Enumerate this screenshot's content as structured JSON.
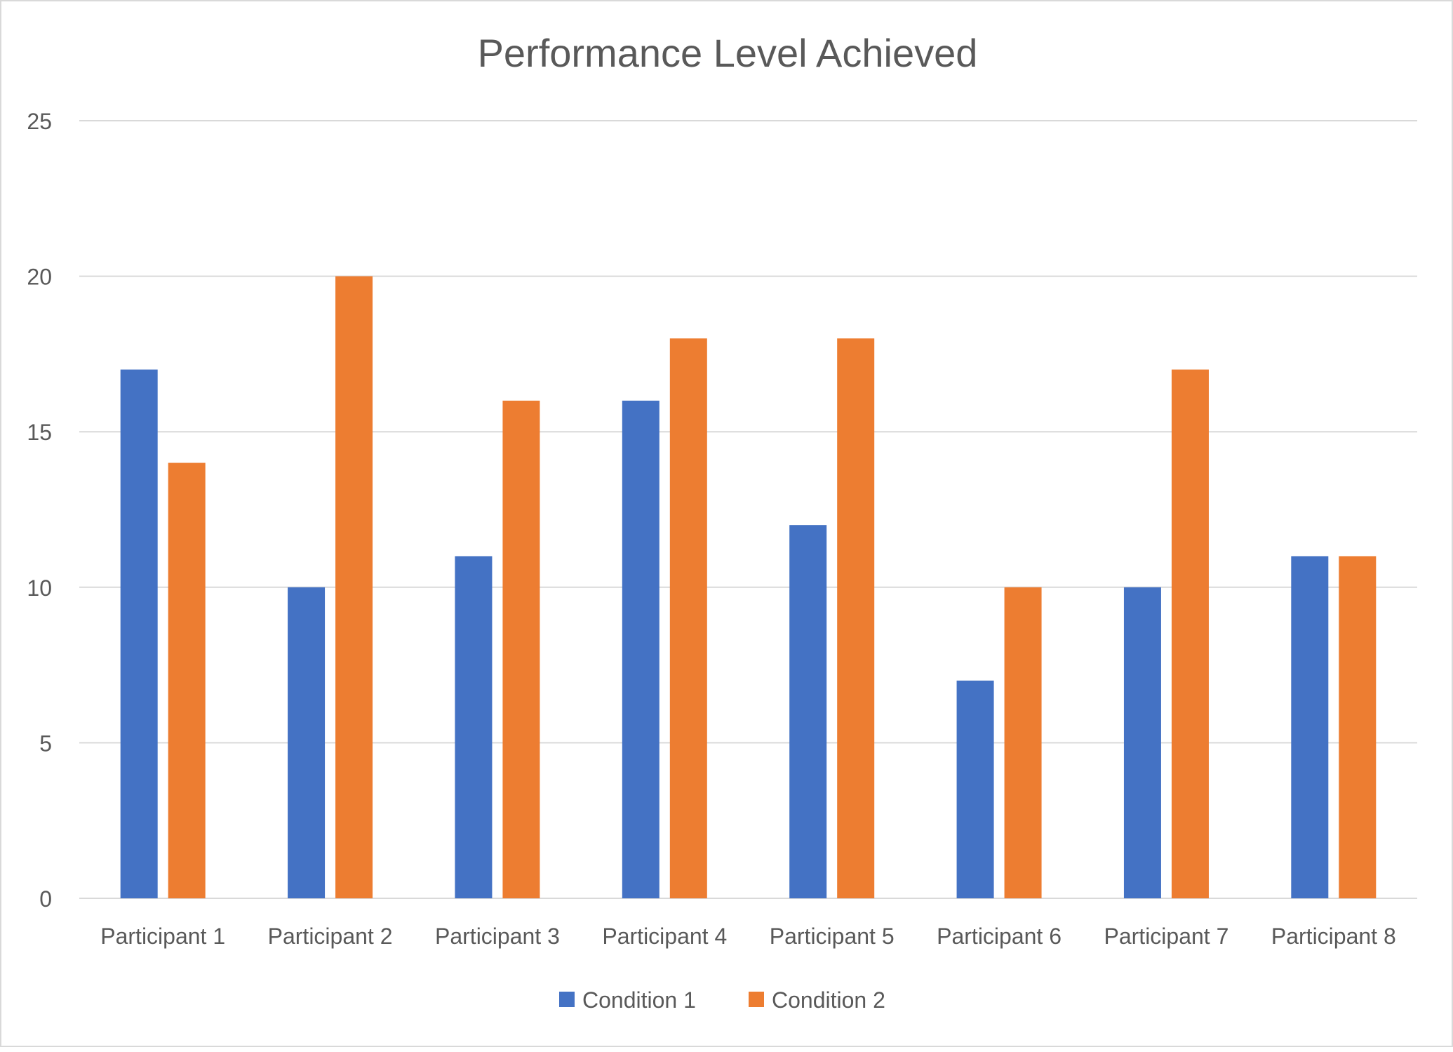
{
  "chart_data": {
    "type": "bar",
    "title": "Performance Level Achieved",
    "xlabel": "",
    "ylabel": "",
    "categories": [
      "Participant 1",
      "Participant 2",
      "Participant 3",
      "Participant 4",
      "Participant 5",
      "Participant 6",
      "Participant 7",
      "Participant 8"
    ],
    "series": [
      {
        "name": "Condition 1",
        "color": "#4472c4",
        "values": [
          17,
          10,
          11,
          16,
          12,
          7,
          10,
          11
        ]
      },
      {
        "name": "Condition 2",
        "color": "#ed7d31",
        "values": [
          14,
          20,
          16,
          18,
          18,
          10,
          17,
          11
        ]
      }
    ],
    "ylim": [
      0,
      25
    ],
    "yticks": [
      "0",
      "5",
      "10",
      "15",
      "20",
      "25"
    ],
    "grid": true,
    "legend_position": "bottom"
  }
}
